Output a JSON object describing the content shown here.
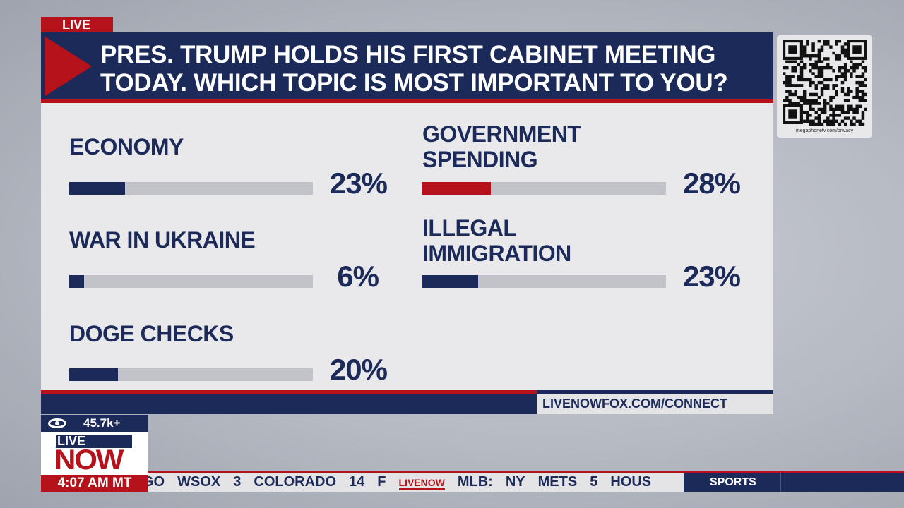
{
  "live_tag": "LIVE",
  "header": {
    "line1": "PRES. TRUMP HOLDS HIS FIRST CABINET MEETING",
    "line2": "TODAY. WHICH TOPIC IS MOST IMPORTANT TO YOU?"
  },
  "colors": {
    "navy": "#1c2a5a",
    "red": "#b5121b",
    "track": "#c2c3c9",
    "panel": "#e9e9ec"
  },
  "chart_data": {
    "type": "bar",
    "title": "PRES. TRUMP HOLDS HIS FIRST CABINET MEETING TODAY. WHICH TOPIC IS MOST IMPORTANT TO YOU?",
    "categories": [
      "ECONOMY",
      "WAR IN UKRAINE",
      "DOGE CHECKS",
      "GOVERNMENT SPENDING",
      "ILLEGAL IMMIGRATION"
    ],
    "values": [
      23,
      6,
      20,
      28,
      23
    ],
    "labels": [
      "23%",
      "6%",
      "20%",
      "28%",
      "23%"
    ],
    "highlight": "GOVERNMENT SPENDING",
    "ylim": [
      0,
      100
    ]
  },
  "qr": {
    "caption": "megaphonetv.com/privacy"
  },
  "footer": {
    "url": "LIVENOWFOX.COM/CONNECT"
  },
  "views": {
    "icon": "eye-icon",
    "count": "45.7k+"
  },
  "logo": {
    "live": "LIVE",
    "now": "NOW"
  },
  "time": "4:07 AM MT",
  "ticker": {
    "items": [
      "GO",
      "WSOX",
      "3",
      "COLORADO",
      "14",
      "F",
      "LIVENOW",
      "MLB:",
      "NY",
      "METS",
      "5",
      "HOUS"
    ],
    "section": "SPORTS"
  }
}
